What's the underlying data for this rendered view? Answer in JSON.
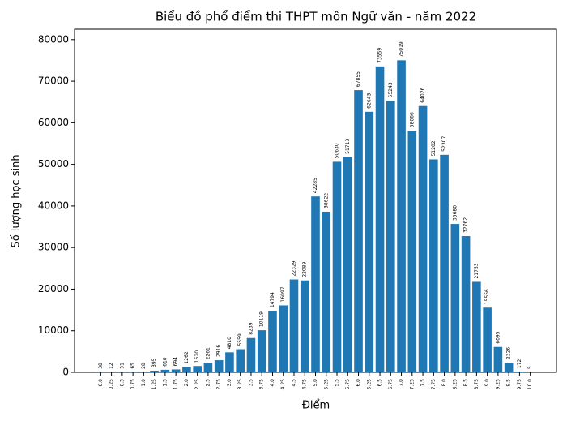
{
  "chart_data": {
    "type": "bar",
    "title": "Biểu đồ phổ điểm thi THPT môn Ngữ văn - năm 2022",
    "x_label": "Điểm",
    "y_label": "Số lượng học sinh",
    "categories": [
      "0.0",
      "0.25",
      "0.5",
      "0.75",
      "1.0",
      "1.25",
      "1.5",
      "1.75",
      "2.0",
      "2.25",
      "2.5",
      "2.75",
      "3.0",
      "3.25",
      "3.5",
      "3.75",
      "4.0",
      "4.25",
      "4.5",
      "4.75",
      "5.0",
      "5.25",
      "5.5",
      "5.75",
      "6.0",
      "6.25",
      "6.5",
      "6.75",
      "7.0",
      "7.25",
      "7.5",
      "7.75",
      "8.0",
      "8.25",
      "8.5",
      "8.75",
      "9.0",
      "9.25",
      "9.5",
      "9.75",
      "10.0"
    ],
    "values": [
      38,
      12,
      51,
      65,
      28,
      395,
      610,
      694,
      1262,
      1520,
      2261,
      2916,
      4810,
      5559,
      8239,
      10119,
      14794,
      16097,
      22329,
      22089,
      42285,
      38622,
      50630,
      51713,
      67855,
      62643,
      73559,
      65243,
      75019,
      58066,
      64026,
      51202,
      52307,
      35680,
      32762,
      21753,
      15556,
      6095,
      2326,
      172,
      5
    ],
    "color": "#1f77b4",
    "ylim": [
      0,
      82500
    ],
    "yticks": [
      0,
      10000,
      20000,
      30000,
      40000,
      50000,
      60000,
      70000,
      80000
    ],
    "grid": false
  }
}
